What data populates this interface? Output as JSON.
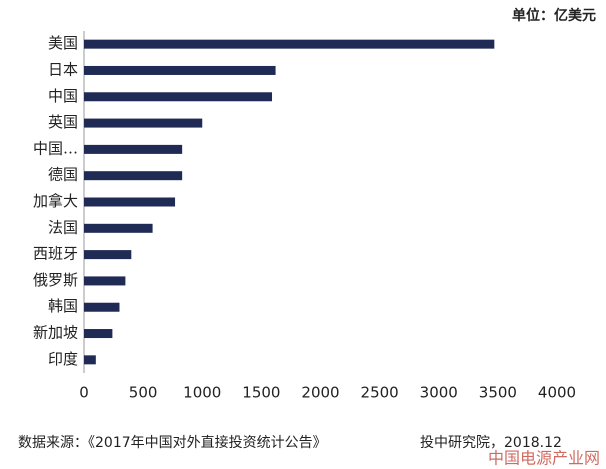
{
  "chart_data": {
    "type": "barh",
    "unit_label": "单位：亿美元",
    "categories": [
      "美国",
      "日本",
      "中国",
      "英国",
      "中国…",
      "德国",
      "加拿大",
      "法国",
      "西班牙",
      "俄罗斯",
      "韩国",
      "新加坡",
      "印度"
    ],
    "values": [
      3470,
      1620,
      1590,
      1000,
      830,
      830,
      770,
      580,
      400,
      350,
      300,
      240,
      100
    ],
    "color": "#1f2a55",
    "xlim": [
      0,
      4000
    ],
    "xticks": [
      0,
      500,
      1000,
      1500,
      2000,
      2500,
      3000,
      3500,
      4000
    ],
    "grid": false,
    "source": "数据来源：《2017年中国对外直接投资统计公告》",
    "publisher": "投中研究院，2018.12",
    "watermark": "中国电源产业网"
  }
}
